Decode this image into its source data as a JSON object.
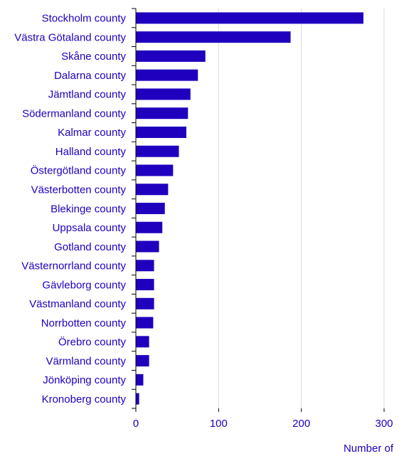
{
  "chart_data": {
    "type": "bar",
    "orientation": "horizontal",
    "categories": [
      "Stockholm county",
      "Västra Götaland county",
      "Skåne county",
      "Dalarna county",
      "Jämtland county",
      "Södermanland county",
      "Kalmar county",
      "Halland county",
      "Östergötland county",
      "Västerbotten county",
      "Blekinge county",
      "Uppsala county",
      "Gotland county",
      "Västernorrland county",
      "Gävleborg county",
      "Västmanland county",
      "Norrbotten county",
      "Örebro county",
      "Värmland county",
      "Jönköping county",
      "Kronoberg county"
    ],
    "values": [
      275,
      187,
      84,
      75,
      66,
      63,
      61,
      52,
      45,
      39,
      35,
      32,
      28,
      22,
      22,
      22,
      21,
      16,
      16,
      9,
      4
    ],
    "xlim": [
      0,
      300
    ],
    "xticks": [
      0,
      100,
      200,
      300
    ],
    "xlabel": "Number of",
    "grid": true,
    "bar_color": "#1e00be",
    "text_color": "#1e00be",
    "grid_color": "#d9d9d9"
  }
}
